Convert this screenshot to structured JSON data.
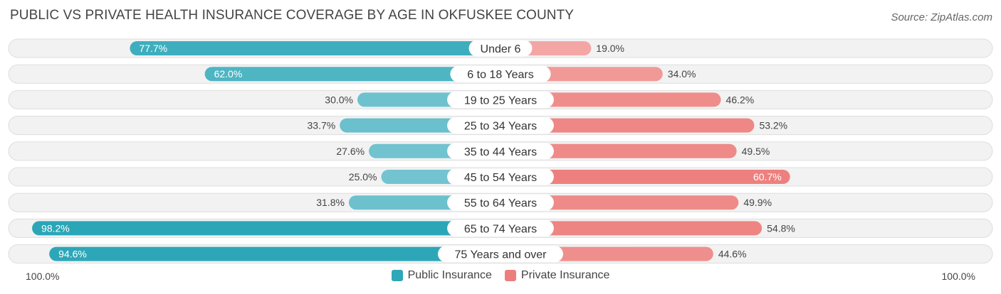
{
  "header": {
    "title": "PUBLIC VS PRIVATE HEALTH INSURANCE COVERAGE BY AGE IN OKFUSKEE COUNTY",
    "source": "Source: ZipAtlas.com"
  },
  "axis": {
    "left_label": "100.0%",
    "right_label": "100.0%"
  },
  "legend": [
    {
      "label": "Public Insurance",
      "color": "#2ea7b8"
    },
    {
      "label": "Private Insurance",
      "color": "#ec7f7d"
    }
  ],
  "chart_data": {
    "type": "bar",
    "orientation": "horizontal-diverging",
    "categories": [
      "Under 6",
      "6 to 18 Years",
      "19 to 25 Years",
      "25 to 34 Years",
      "35 to 44 Years",
      "45 to 54 Years",
      "55 to 64 Years",
      "65 to 74 Years",
      "75 Years and over"
    ],
    "series": [
      {
        "name": "Public Insurance",
        "side": "left",
        "values": [
          77.7,
          62.0,
          30.0,
          33.7,
          27.6,
          25.0,
          31.8,
          98.2,
          94.6
        ]
      },
      {
        "name": "Private Insurance",
        "side": "right",
        "values": [
          19.0,
          34.0,
          46.2,
          53.2,
          49.5,
          60.7,
          49.9,
          54.8,
          44.6
        ]
      }
    ],
    "value_format": "{v}%",
    "xlim": [
      0,
      100
    ],
    "legend_position": "bottom-center"
  }
}
